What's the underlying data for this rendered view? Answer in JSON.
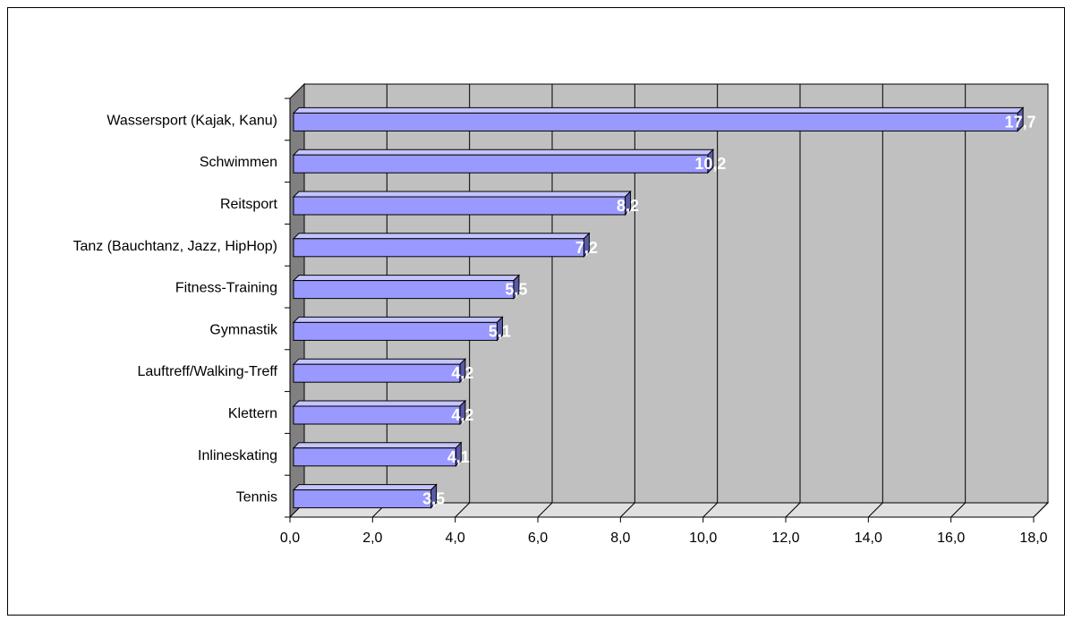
{
  "chart_data": {
    "type": "bar",
    "orientation": "horizontal",
    "style": "3d",
    "categories": [
      "Wassersport (Kajak, Kanu)",
      "Schwimmen",
      "Reitsport",
      "Tanz (Bauchtanz, Jazz, HipHop)",
      "Fitness-Training",
      "Gymnastik",
      "Lauftreff/Walking-Treff",
      "Klettern",
      "Inlineskating",
      "Tennis"
    ],
    "values": [
      17.7,
      10.2,
      8.2,
      7.2,
      5.5,
      5.1,
      4.2,
      4.2,
      4.1,
      3.5
    ],
    "value_labels": [
      "17,7",
      "10,2",
      "8,2",
      "7,2",
      "5,5",
      "5,1",
      "4,2",
      "4,2",
      "4,1",
      "3,5"
    ],
    "x_ticks": [
      "0,0",
      "2,0",
      "4,0",
      "6,0",
      "8,0",
      "10,0",
      "12,0",
      "14,0",
      "16,0",
      "18,0"
    ],
    "xlim": [
      0,
      18
    ],
    "grid": true,
    "legend": "none",
    "colors": {
      "bar_front": "#9999ff",
      "bar_top": "#c4c4ff",
      "bar_side": "#5a5aa8",
      "plot_back": "#c0c0c0",
      "floor": "#e0e0e0",
      "side_wall": "#808080",
      "data_label": "#ffffff"
    }
  }
}
